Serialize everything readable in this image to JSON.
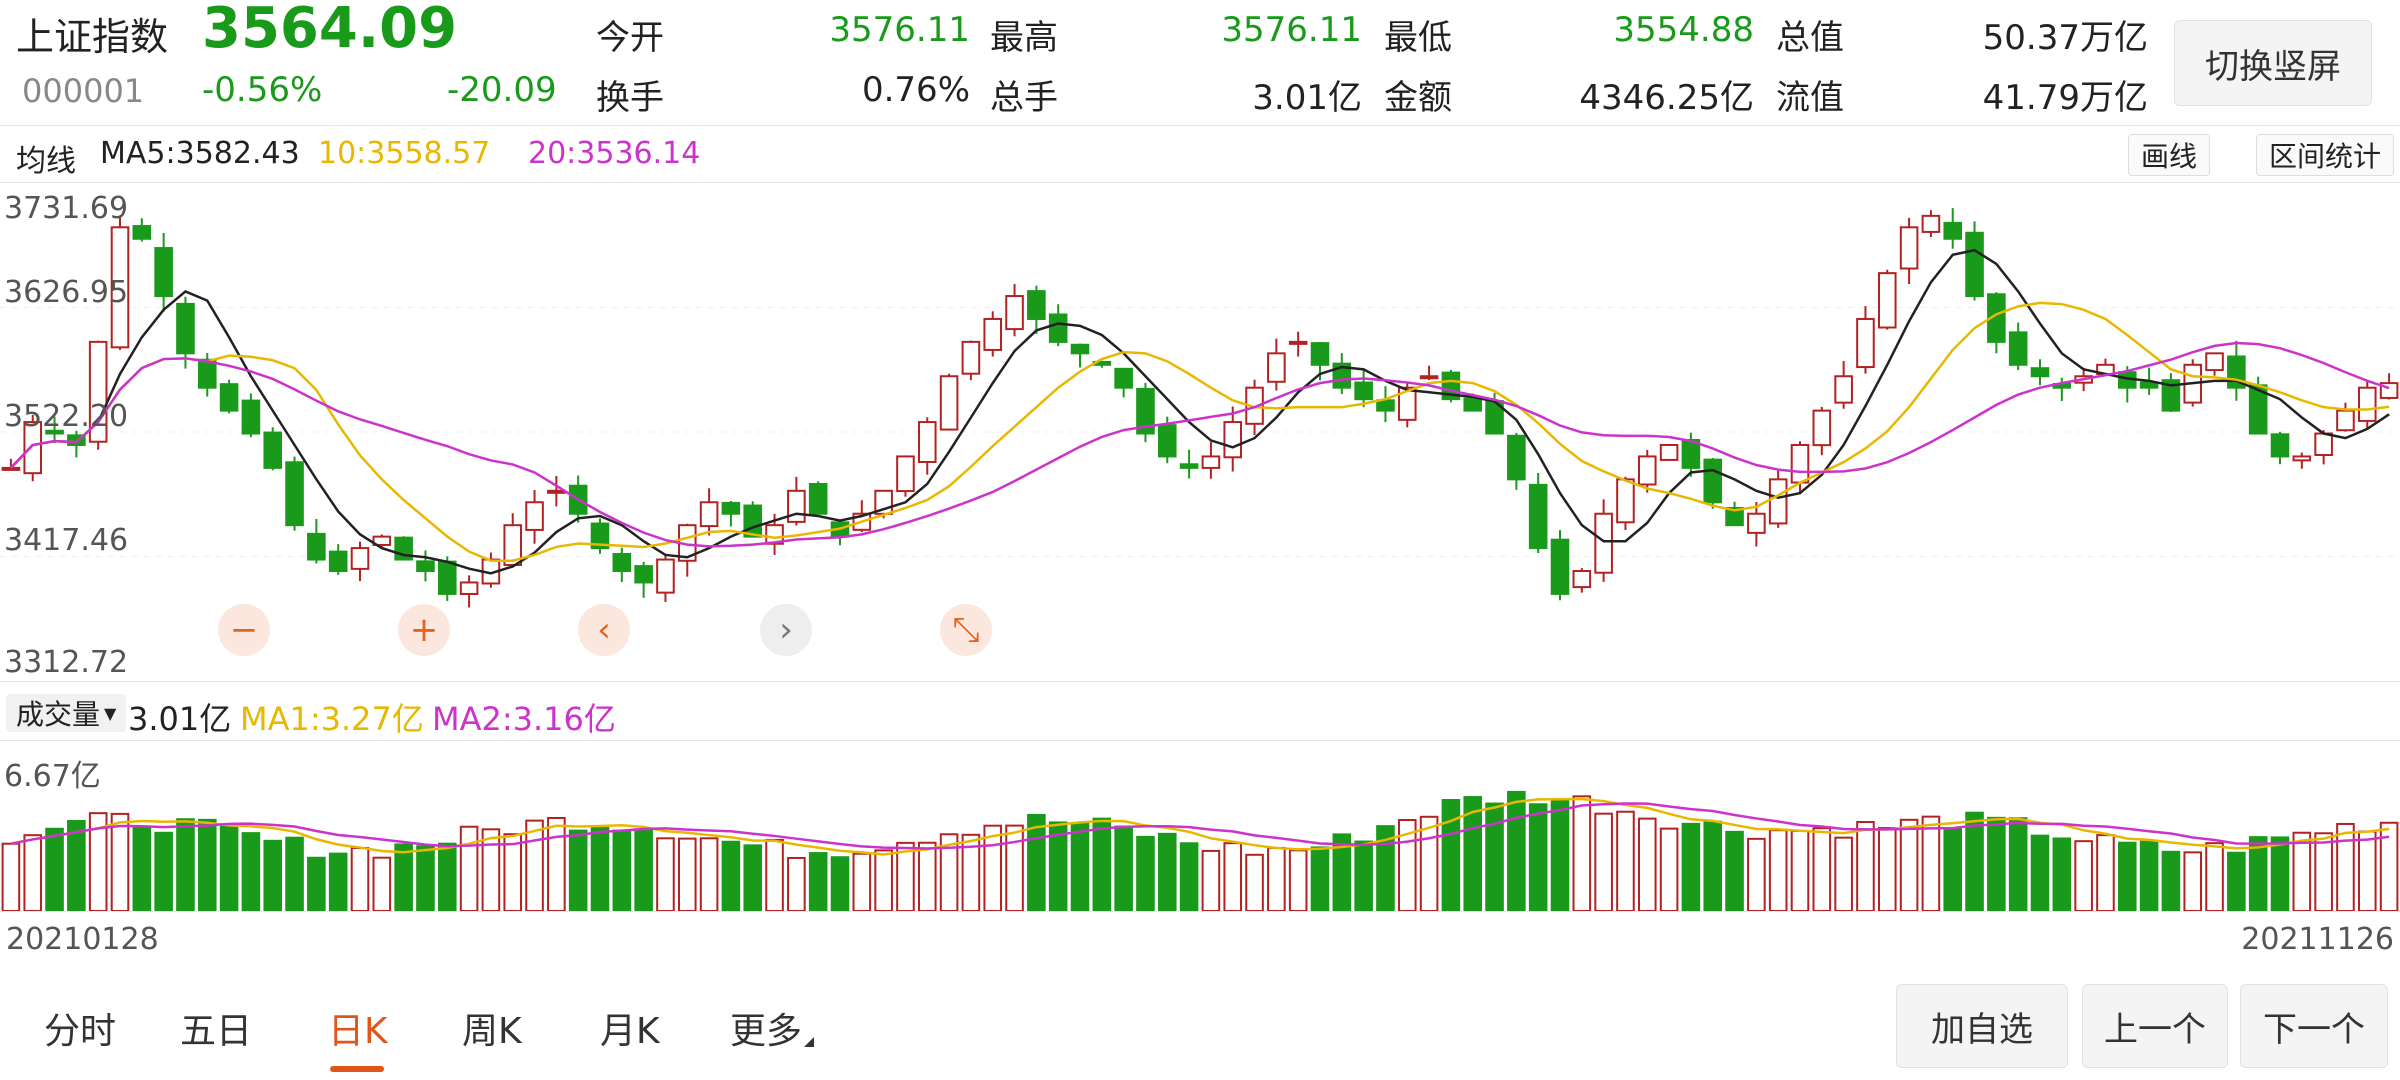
{
  "header": {
    "name": "上证指数",
    "price": "3564.09",
    "code": "000001",
    "change_pct": "-0.56%",
    "change": "-20.09",
    "stats": [
      {
        "label": "今开",
        "value": "3576.11",
        "color": "#1a9a1a"
      },
      {
        "label": "最高",
        "value": "3576.11",
        "color": "#1a9a1a"
      },
      {
        "label": "最低",
        "value": "3554.88",
        "color": "#1a9a1a"
      },
      {
        "label": "总值",
        "value": "50.37万亿",
        "color": "#222222"
      },
      {
        "label": "换手",
        "value": "0.76%",
        "color": "#222222"
      },
      {
        "label": "总手",
        "value": "3.01亿",
        "color": "#222222"
      },
      {
        "label": "金额",
        "value": "4346.25亿",
        "color": "#222222"
      },
      {
        "label": "流值",
        "value": "41.79万亿",
        "color": "#222222"
      }
    ],
    "portrait_button": "切换竖屏"
  },
  "ma_legend": {
    "label": "均线",
    "ma5": "MA5:3582.43",
    "ma10": "10:3558.57",
    "ma20": "20:3536.14",
    "draw_button": "画线",
    "range_button": "区间统计"
  },
  "price_axis": [
    "3731.69",
    "3626.95",
    "3522.20",
    "3417.46",
    "3312.72"
  ],
  "volume_legend": {
    "label": "成交量",
    "current": "3.01亿",
    "ma1": "MA1:3.27亿",
    "ma2": "MA2:3.16亿",
    "axis_top": "6.67亿"
  },
  "dates": {
    "start": "20210128",
    "end": "20211126"
  },
  "tabs": [
    "分时",
    "五日",
    "日K",
    "周K",
    "月K",
    "更多"
  ],
  "active_tab": 2,
  "nav_buttons": {
    "add": "加自选",
    "prev": "上一个",
    "next": "下一个"
  },
  "controls": [
    "minus-icon",
    "plus-icon",
    "chevron-left-icon",
    "chevron-right-icon",
    "shrink-icon"
  ],
  "colors": {
    "up": "#b22222",
    "down": "#1a9a1a",
    "ma5": "#222222",
    "ma10": "#e8b800",
    "ma20": "#cc33cc",
    "accent": "#e0561a"
  },
  "chart_data": {
    "type": "candlestick",
    "price_range": [
      3312.72,
      3731.69
    ],
    "close_path": [
      3490,
      3530,
      3520,
      3510,
      3600,
      3700,
      3690,
      3640,
      3590,
      3560,
      3540,
      3520,
      3490,
      3440,
      3410,
      3400,
      3420,
      3430,
      3410,
      3400,
      3380,
      3390,
      3410,
      3440,
      3460,
      3470,
      3450,
      3420,
      3400,
      3390,
      3410,
      3440,
      3460,
      3450,
      3430,
      3440,
      3470,
      3450,
      3430,
      3450,
      3470,
      3500,
      3530,
      3570,
      3600,
      3620,
      3640,
      3620,
      3600,
      3590,
      3580,
      3560,
      3520,
      3500,
      3490,
      3500,
      3530,
      3560,
      3590,
      3600,
      3580,
      3560,
      3550,
      3540,
      3560,
      3570,
      3550,
      3540,
      3520,
      3480,
      3420,
      3380,
      3400,
      3450,
      3480,
      3500,
      3510,
      3490,
      3460,
      3440,
      3450,
      3480,
      3510,
      3540,
      3570,
      3620,
      3660,
      3700,
      3710,
      3690,
      3640,
      3600,
      3580,
      3570,
      3560,
      3570,
      3580,
      3560,
      3560,
      3540,
      3580,
      3590,
      3560,
      3520,
      3500,
      3500,
      3520,
      3540,
      3560,
      3564
    ]
  }
}
